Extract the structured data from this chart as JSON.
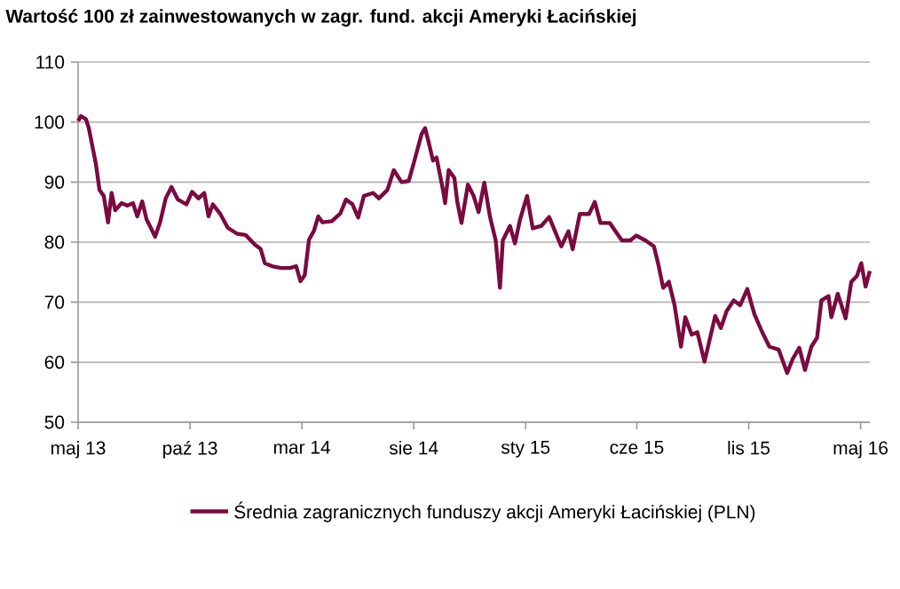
{
  "chart_data": {
    "type": "line",
    "title": "Wartość 100 zł zainwestowanych w zagr. fund. akcji Ameryki Łacińskiej",
    "xlim": [
      "2013-05-01",
      "2016-05-16"
    ],
    "xticks": [
      {
        "value": "2013-05-01",
        "label": "maj 13"
      },
      {
        "value": "2013-10-05",
        "label": "paź 13"
      },
      {
        "value": "2014-03-11",
        "label": "mar 14"
      },
      {
        "value": "2014-08-15",
        "label": "sie 14"
      },
      {
        "value": "2015-01-19",
        "label": "sty 15"
      },
      {
        "value": "2015-06-24",
        "label": "cze 15"
      },
      {
        "value": "2015-11-28",
        "label": "lis 15"
      },
      {
        "value": "2016-05-03",
        "label": "maj 16"
      }
    ],
    "ylim": [
      50,
      110
    ],
    "yticks": [
      50,
      60,
      70,
      80,
      90,
      100,
      110
    ],
    "grid": "y",
    "legend": "bottom",
    "marker": "none",
    "line_style": "solid",
    "series": [
      {
        "name": "Średnia zagranicznych funduszy akcji Ameryki Łacińskiej (PLN)",
        "color": "#7a0a3f",
        "x": [
          "2013-05-01",
          "2013-05-05",
          "2013-05-12",
          "2013-05-16",
          "2013-05-20",
          "2013-05-26",
          "2013-05-31",
          "2013-06-06",
          "2013-06-12",
          "2013-06-17",
          "2013-06-22",
          "2013-07-01",
          "2013-07-09",
          "2013-07-17",
          "2013-07-23",
          "2013-07-30",
          "2013-08-05",
          "2013-08-11",
          "2013-08-17",
          "2013-08-24",
          "2013-09-01",
          "2013-09-09",
          "2013-09-18",
          "2013-09-30",
          "2013-10-08",
          "2013-10-17",
          "2013-10-25",
          "2013-10-31",
          "2013-11-06",
          "2013-11-16",
          "2013-11-27",
          "2013-12-10",
          "2013-12-22",
          "2014-01-04",
          "2014-01-12",
          "2014-01-18",
          "2014-01-28",
          "2014-02-10",
          "2014-02-22",
          "2014-03-03",
          "2014-03-09",
          "2014-03-15",
          "2014-03-21",
          "2014-03-28",
          "2014-04-03",
          "2014-04-09",
          "2014-04-22",
          "2014-05-04",
          "2014-05-12",
          "2014-05-21",
          "2014-05-29",
          "2014-06-06",
          "2014-06-19",
          "2014-06-27",
          "2014-07-09",
          "2014-07-18",
          "2014-07-29",
          "2014-08-08",
          "2014-08-16",
          "2014-08-26",
          "2014-08-31",
          "2014-09-06",
          "2014-09-11",
          "2014-09-16",
          "2014-09-25",
          "2014-09-28",
          "2014-10-03",
          "2014-10-11",
          "2014-10-15",
          "2014-10-21",
          "2014-10-30",
          "2014-11-07",
          "2014-11-14",
          "2014-11-22",
          "2014-11-30",
          "2014-12-08",
          "2014-12-14",
          "2014-12-18",
          "2014-12-28",
          "2015-01-04",
          "2015-01-11",
          "2015-01-21",
          "2015-01-29",
          "2015-02-10",
          "2015-02-21",
          "2015-03-03",
          "2015-03-10",
          "2015-03-20",
          "2015-03-26",
          "2015-04-05",
          "2015-04-18",
          "2015-04-26",
          "2015-05-04",
          "2015-05-17",
          "2015-06-03",
          "2015-06-15",
          "2015-06-23",
          "2015-07-06",
          "2015-07-18",
          "2015-07-24",
          "2015-07-31",
          "2015-08-08",
          "2015-08-16",
          "2015-08-25",
          "2015-08-31",
          "2015-09-09",
          "2015-09-17",
          "2015-09-27",
          "2015-10-03",
          "2015-10-12",
          "2015-10-20",
          "2015-10-28",
          "2015-11-07",
          "2015-11-16",
          "2015-11-26",
          "2015-12-06",
          "2015-12-17",
          "2015-12-27",
          "2016-01-09",
          "2016-01-21",
          "2016-01-29",
          "2016-02-07",
          "2016-02-15",
          "2016-02-24",
          "2016-03-03",
          "2016-03-09",
          "2016-03-19",
          "2016-03-23",
          "2016-04-01",
          "2016-04-12",
          "2016-04-20",
          "2016-04-28",
          "2016-05-04",
          "2016-05-10",
          "2016-05-16"
        ],
        "values": [
          100.2,
          101,
          100.5,
          99,
          96.6,
          93,
          88.7,
          87.7,
          83.3,
          88.2,
          85.3,
          86.5,
          86.1,
          86.5,
          84.3,
          86.8,
          83.8,
          82.4,
          80.9,
          83.3,
          87.3,
          89.2,
          87.1,
          86.3,
          88.4,
          87.3,
          88.2,
          84.3,
          86.3,
          84.8,
          82.4,
          81.4,
          81.2,
          79.6,
          78.9,
          76.5,
          76,
          75.7,
          75.7,
          76,
          73.5,
          74.5,
          80.4,
          81.9,
          84.3,
          83.3,
          83.5,
          84.8,
          87.1,
          86.3,
          84.1,
          87.7,
          88.2,
          87.3,
          88.7,
          92,
          90,
          90.2,
          93.6,
          98,
          99,
          96.1,
          93.6,
          94.1,
          88.7,
          86.5,
          92,
          90.7,
          86.8,
          83.2,
          89.6,
          87.7,
          85,
          89.9,
          84.2,
          80.3,
          72.4,
          80.3,
          82.7,
          79.8,
          83.7,
          87.7,
          82.3,
          82.7,
          84.2,
          81.3,
          79.3,
          81.8,
          78.8,
          84.7,
          84.7,
          86.7,
          83.2,
          83.2,
          80.3,
          80.3,
          81.1,
          80.3,
          79.3,
          76.4,
          72.4,
          73.4,
          69.5,
          62.6,
          67.5,
          64.6,
          65,
          60.1,
          63.1,
          67.7,
          65.7,
          68.5,
          70.3,
          69.5,
          72.2,
          68,
          65,
          62.6,
          62.1,
          58.2,
          60.6,
          62.4,
          58.7,
          62.6,
          64.1,
          70.3,
          71,
          67.5,
          71.4,
          67.3,
          73.4,
          74.4,
          76.5,
          72.6,
          75.2
        ]
      }
    ]
  }
}
